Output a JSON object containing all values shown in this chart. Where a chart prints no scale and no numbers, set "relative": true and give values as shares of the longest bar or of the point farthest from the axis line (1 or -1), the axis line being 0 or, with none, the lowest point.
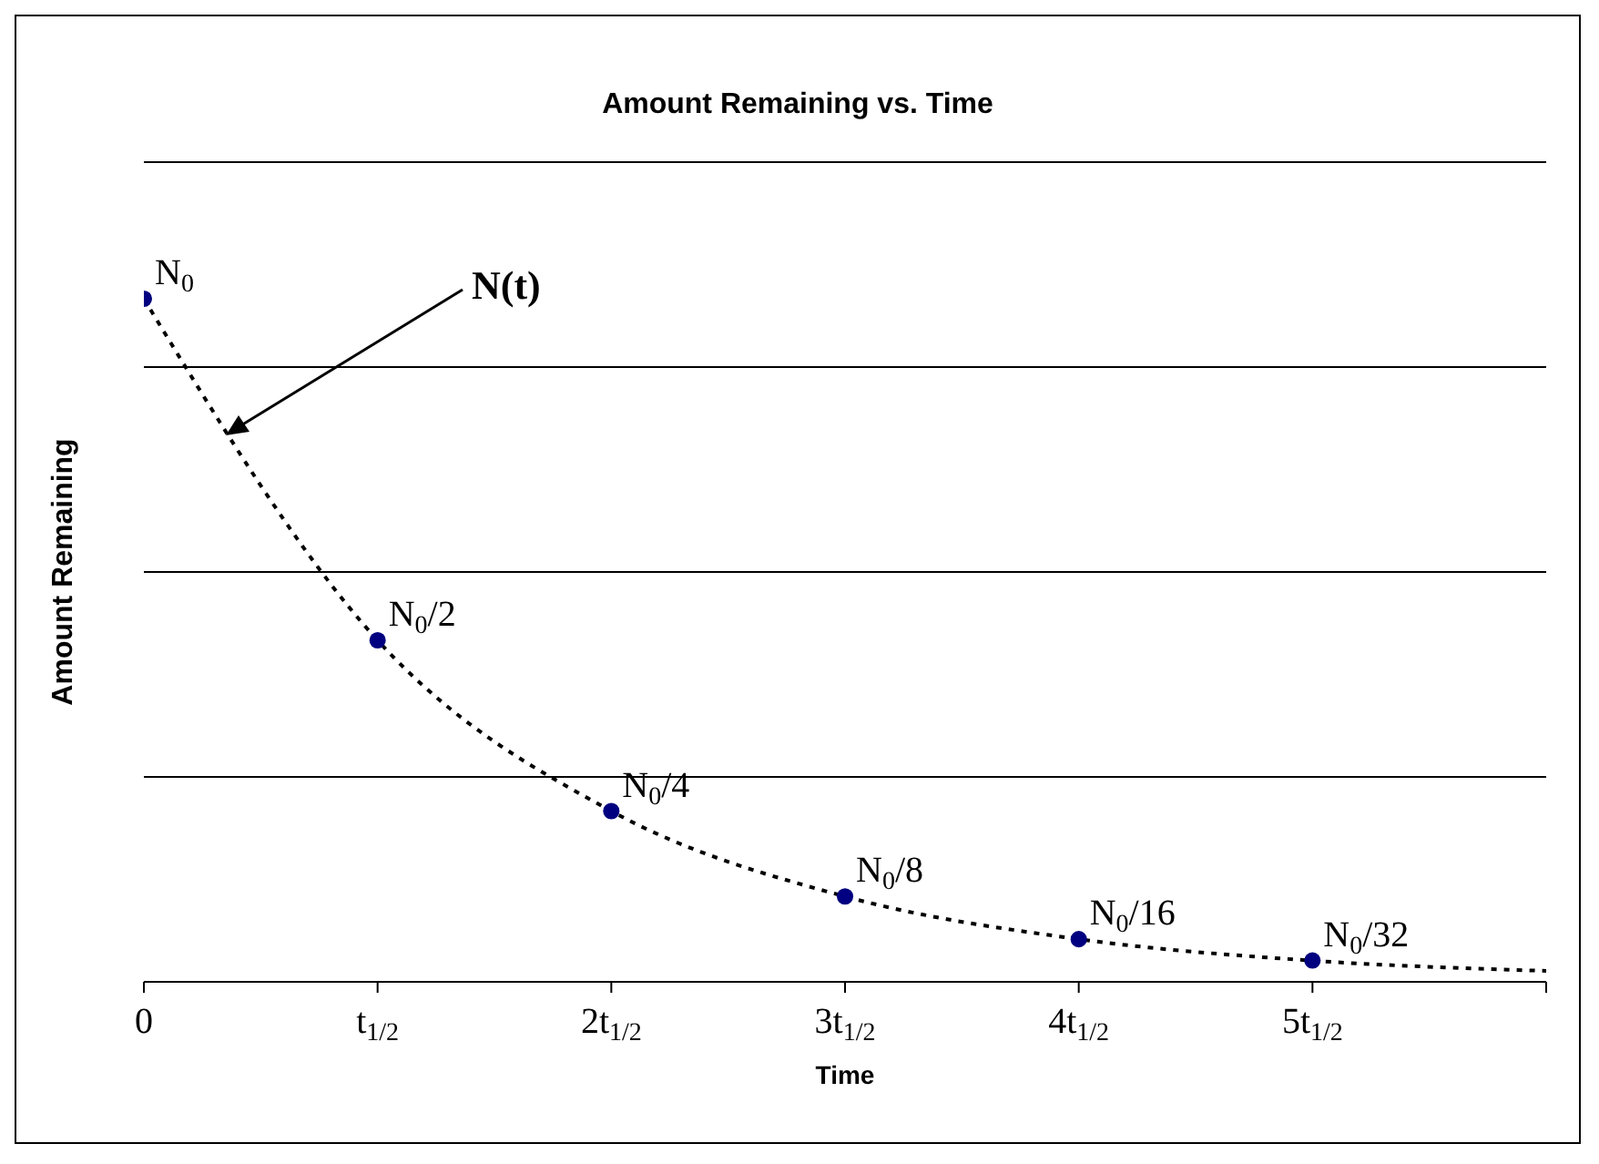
{
  "chart_data": {
    "type": "scatter",
    "title": "Amount Remaining vs. Time",
    "xlabel": "Time",
    "ylabel": "Amount Remaining",
    "relative": true,
    "categories": [
      "0",
      "t$_{1/2}$",
      "2t$_{1/2}$",
      "3t$_{1/2}$",
      "4t$_{1/2}$",
      "5t$_{1/2}$",
      null
    ],
    "grid": "y",
    "legend": false,
    "annotations": [
      "N(t)",
      {
        "text": "N$_{0}$",
        "x": "0",
        "y": 1
      },
      {
        "text": "N$_{0}$/2",
        "x": "t$_{1/2}$",
        "y": 0.5
      },
      {
        "text": "N$_{0}$/4",
        "x": "2t$_{1/2}$",
        "y": 0.25
      },
      {
        "text": "N$_{0}$/8",
        "x": "3t$_{1/2}$",
        "y": 0.125
      },
      {
        "text": "N$_{0}$/16",
        "x": "4t$_{1/2}$",
        "y": 0.0625
      },
      {
        "text": "N$_{0}$/32",
        "x": "5t$_{1/2}$",
        "y": 0.03125
      }
    ],
    "series": [
      {
        "type": "line",
        "color": "#000000",
        "line_style": "dotted",
        "marker": "none",
        "values": [
          1,
          0.5,
          0.25,
          0.125,
          0.0625,
          0.031,
          0.016
        ]
      },
      {
        "color": "#000080",
        "marker": "circle",
        "values": [
          1,
          0.5,
          0.25,
          0.125,
          0.0625,
          0.03125,
          null
        ]
      }
    ]
  }
}
